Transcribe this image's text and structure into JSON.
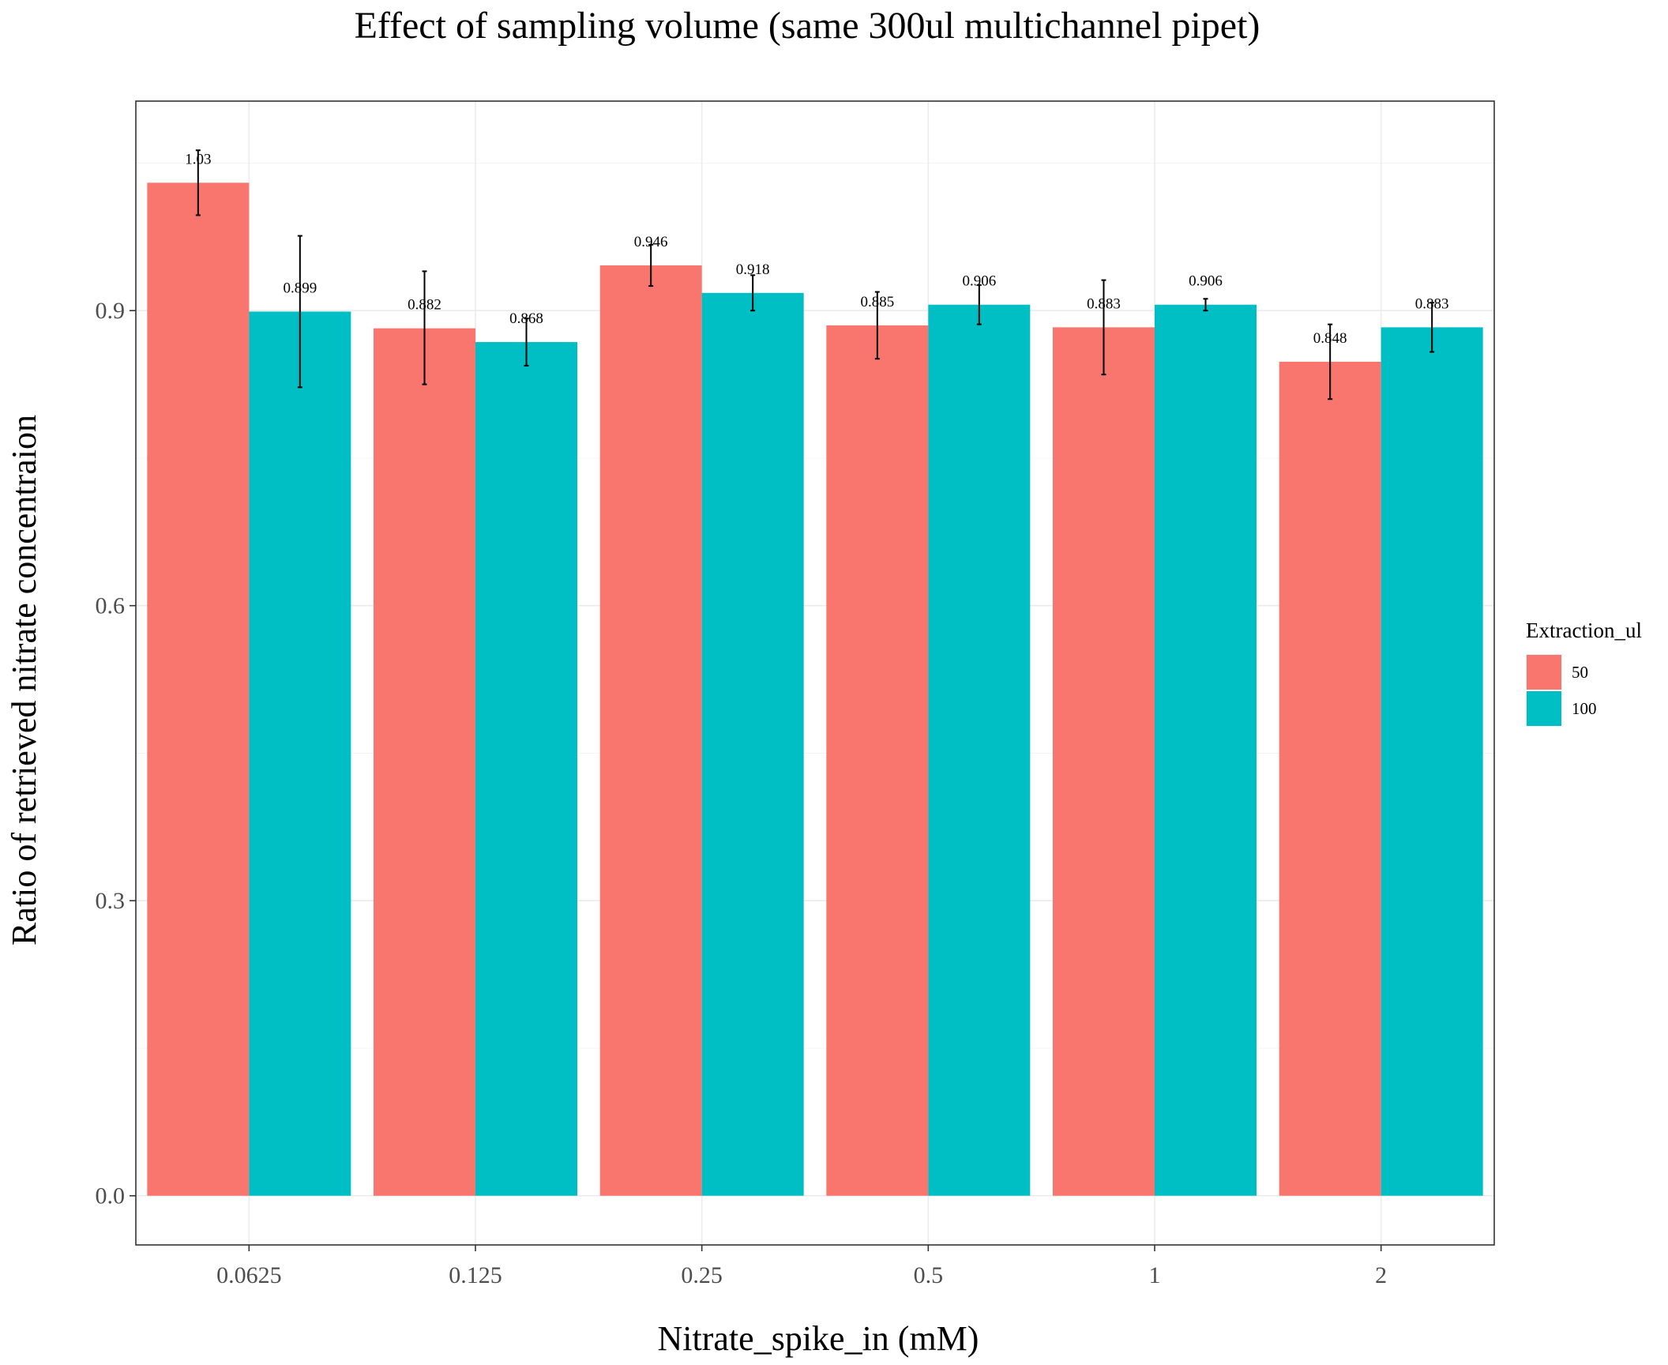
{
  "chart_data": {
    "type": "bar",
    "title": "Effect of sampling volume (same 300ul multichannel pipet)",
    "xlabel": "Nitrate_spike_in (mM)",
    "ylabel": "Ratio of retrieved nitrate concentraion",
    "categories": [
      "0.0625",
      "0.125",
      "0.25",
      "0.5",
      "1",
      "2"
    ],
    "series": [
      {
        "name": "50",
        "color": "#F8766D",
        "values": [
          1.03,
          0.882,
          0.946,
          0.885,
          0.883,
          0.848
        ],
        "labels": [
          "1.03",
          "0.882",
          "0.946",
          "0.885",
          "0.883",
          "0.848"
        ],
        "err_low": [
          0.997,
          0.825,
          0.925,
          0.851,
          0.835,
          0.81
        ],
        "err_high": [
          1.063,
          0.94,
          0.967,
          0.919,
          0.931,
          0.886
        ]
      },
      {
        "name": "100",
        "color": "#00BFC4",
        "values": [
          0.899,
          0.868,
          0.918,
          0.906,
          0.906,
          0.883
        ],
        "labels": [
          "0.899",
          "0.868",
          "0.918",
          "0.906",
          "0.906",
          "0.883"
        ],
        "err_low": [
          0.822,
          0.844,
          0.9,
          0.886,
          0.9,
          0.858
        ],
        "err_high": [
          0.976,
          0.892,
          0.936,
          0.926,
          0.912,
          0.908
        ]
      }
    ],
    "yticks": [
      0.0,
      0.3,
      0.6,
      0.9
    ],
    "ytick_labels": [
      "0.0",
      "0.3",
      "0.6",
      "0.9"
    ],
    "ylim": [
      -0.05,
      1.113
    ],
    "grid": true,
    "legend": {
      "title": "Extraction_ul",
      "position": "right"
    }
  }
}
